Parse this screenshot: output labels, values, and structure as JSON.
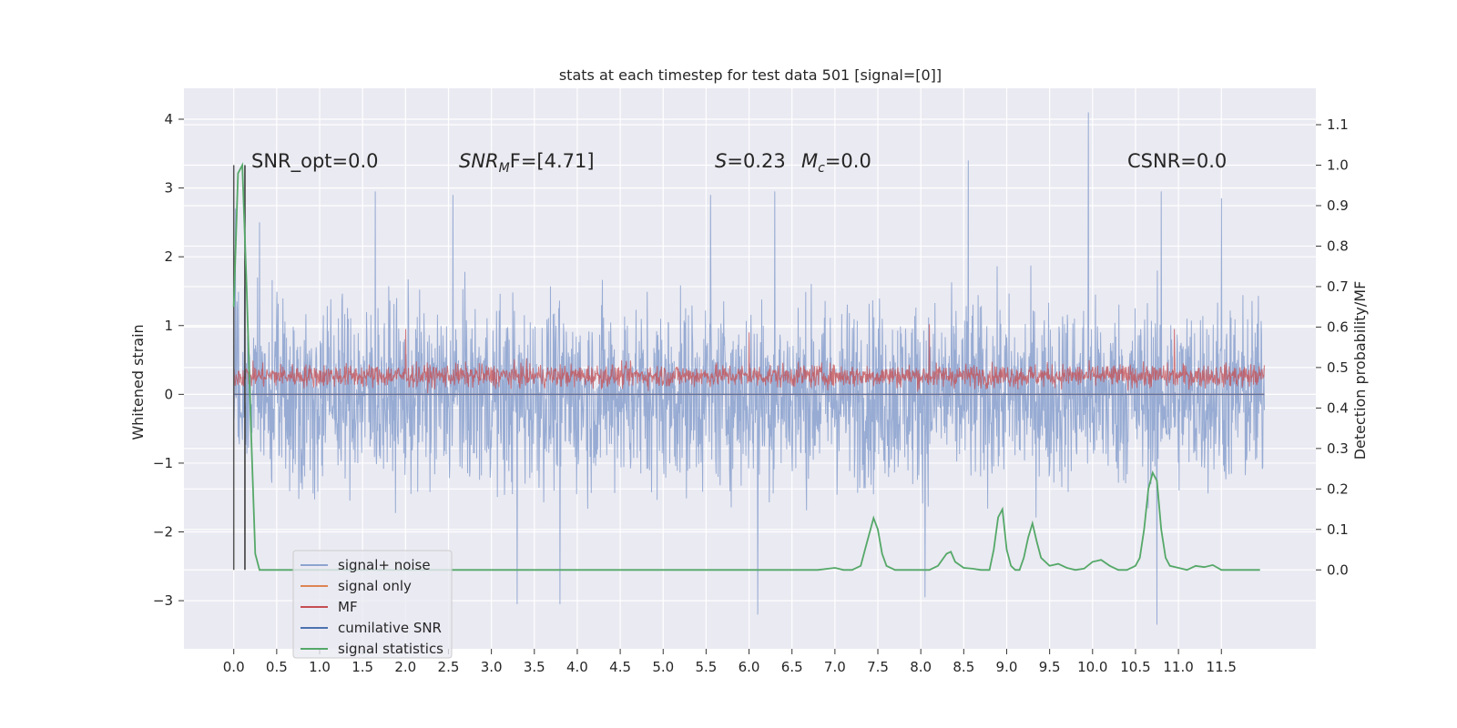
{
  "chart_data": {
    "type": "line",
    "title": "stats at each timestep for test data 501 [signal=[0]]",
    "xlabel": "",
    "ylabel": "Whitened strain",
    "y2label": "Detection probability/MF",
    "xlim": [
      -0.58,
      12.6
    ],
    "ylim": [
      -3.7,
      4.45
    ],
    "y2lim": [
      -0.195,
      1.19
    ],
    "x_ticks": [
      "0.0",
      "0.5",
      "1.0",
      "1.5",
      "2.0",
      "2.5",
      "3.0",
      "3.5",
      "4.0",
      "4.5",
      "5.0",
      "5.5",
      "6.0",
      "6.5",
      "7.0",
      "7.5",
      "8.0",
      "8.5",
      "9.0",
      "9.5",
      "10.0",
      "10.5",
      "11.0",
      "11.5"
    ],
    "y_ticks": [
      "−3",
      "−2",
      "−1",
      "0",
      "1",
      "2",
      "3",
      "4"
    ],
    "y2_ticks": [
      "0.0",
      "0.1",
      "0.2",
      "0.3",
      "0.4",
      "0.5",
      "0.6",
      "0.7",
      "0.8",
      "0.9",
      "1.0",
      "1.1"
    ],
    "grid": true,
    "legend_position": "lower-left",
    "annotations": {
      "snr_opt": "SNR_opt=0.0",
      "snr_mf_prefix": "SNR",
      "snr_mf_sub": "M",
      "snr_mf_suffix": "F=[4.71]",
      "s_var": "S",
      "s_val": "=0.23",
      "mc_var": "M",
      "mc_sub": "c",
      "mc_val": "=0.0",
      "csnr": "CSNR=0.0"
    },
    "series": [
      {
        "name": "signal+ noise",
        "color": "#8ea4cf",
        "description": "dense noisy strain trace",
        "x_range": [
          0.0,
          12.0
        ],
        "approx_band": [
          -1.6,
          1.6
        ],
        "spikes": [
          [
            0.02,
            2.7
          ],
          [
            0.3,
            2.5
          ],
          [
            1.65,
            2.95
          ],
          [
            2.55,
            2.9
          ],
          [
            5.55,
            2.9
          ],
          [
            6.3,
            2.95
          ],
          [
            8.55,
            3.4
          ],
          [
            9.95,
            4.1
          ],
          [
            10.8,
            2.95
          ],
          [
            11.5,
            2.85
          ],
          [
            6.1,
            -3.2
          ],
          [
            10.75,
            -3.35
          ],
          [
            3.3,
            -3.05
          ],
          [
            3.8,
            -3.05
          ],
          [
            8.05,
            -2.95
          ]
        ]
      },
      {
        "name": "signal only",
        "color": "#dd8452",
        "values_const": 0.0
      },
      {
        "name": "MF",
        "color": "#c44e52",
        "description": "matched-filter output band",
        "approx_band": [
          0.0,
          0.55
        ],
        "spikes": [
          [
            2.0,
            0.95
          ],
          [
            8.1,
            1.02
          ],
          [
            10.95,
            0.95
          ],
          [
            6.0,
            0.9
          ]
        ]
      },
      {
        "name": "cumilative SNR",
        "color": "#4c72b0",
        "x": [
          0.0,
          12.0
        ],
        "y": [
          0.0,
          0.0
        ]
      },
      {
        "name": "signal statistics",
        "color": "#55a868",
        "axis": "right",
        "x": [
          0.0,
          0.05,
          0.1,
          0.15,
          0.2,
          0.25,
          0.3,
          0.35,
          0.5,
          1.0,
          2.0,
          3.0,
          4.0,
          5.0,
          6.0,
          6.8,
          7.0,
          7.1,
          7.2,
          7.3,
          7.35,
          7.45,
          7.5,
          7.55,
          7.6,
          7.7,
          7.8,
          7.9,
          8.0,
          8.1,
          8.2,
          8.3,
          8.35,
          8.4,
          8.5,
          8.6,
          8.7,
          8.8,
          8.85,
          8.9,
          8.95,
          9.0,
          9.05,
          9.1,
          9.15,
          9.2,
          9.25,
          9.3,
          9.35,
          9.4,
          9.5,
          9.6,
          9.7,
          9.8,
          9.9,
          10.0,
          10.1,
          10.2,
          10.3,
          10.4,
          10.5,
          10.55,
          10.6,
          10.65,
          10.7,
          10.75,
          10.8,
          10.85,
          10.9,
          11.0,
          11.1,
          11.2,
          11.3,
          11.4,
          11.5,
          11.6,
          11.8,
          11.95
        ],
        "y": [
          0.65,
          0.98,
          1.0,
          0.7,
          0.35,
          0.04,
          0.0,
          0.0,
          0.0,
          0.0,
          0.0,
          0.0,
          0.0,
          0.0,
          0.0,
          0.0,
          0.005,
          0.0,
          0.0,
          0.01,
          0.05,
          0.128,
          0.1,
          0.04,
          0.01,
          0.0,
          0.0,
          0.0,
          0.0,
          0.0,
          0.01,
          0.04,
          0.045,
          0.02,
          0.005,
          0.003,
          0.0,
          0.0,
          0.05,
          0.13,
          0.15,
          0.05,
          0.01,
          0.0,
          0.0,
          0.03,
          0.08,
          0.115,
          0.07,
          0.03,
          0.01,
          0.015,
          0.005,
          0.0,
          0.003,
          0.02,
          0.025,
          0.01,
          0.0,
          0.0,
          0.01,
          0.03,
          0.1,
          0.2,
          0.24,
          0.22,
          0.1,
          0.03,
          0.01,
          0.005,
          0.0,
          0.01,
          0.007,
          0.012,
          0.0,
          0.0,
          0.0,
          0.0
        ]
      }
    ],
    "vertical_lines": [
      {
        "x": 0.0,
        "color": "#555555"
      },
      {
        "x": 0.13,
        "color": "#333333"
      }
    ]
  }
}
